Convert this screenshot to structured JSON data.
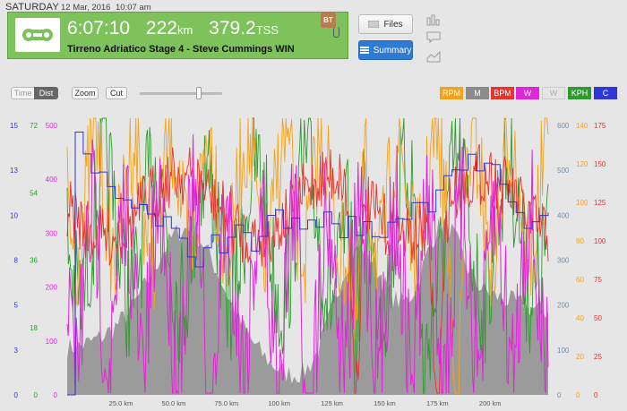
{
  "header": {
    "day": "SATURDAY",
    "date": "12 Mar, 2016",
    "time": "10:07 am"
  },
  "ride": {
    "duration": "6:07:10",
    "distance": "222",
    "distance_unit": "km",
    "tss": "379.2",
    "tss_unit": "TSS",
    "title": "Tirreno Adriatico Stage 4 - Steve Cummings WIN",
    "badge": "BT"
  },
  "buttons": {
    "files": "Files",
    "summary": "Summary"
  },
  "side_icons": [
    "bar-chart-icon",
    "comment-icon",
    "area-chart-icon"
  ],
  "controls": {
    "time": "Time",
    "dist": "Dist",
    "zoom": "Zoom",
    "cut": "Cut",
    "zoom_level": 0.72
  },
  "colors": {
    "banner": "#7dc25b",
    "rpm": "#f5a21a",
    "m": "#8a8a8a",
    "bpm": "#e8322c",
    "w_pink": "#e026d8",
    "w_white": "#e6e6e6",
    "kph": "#2f9a2f",
    "c": "#2f37d8"
  },
  "legend": [
    "RPM",
    "M",
    "BPM",
    "W",
    "W",
    "KPH",
    "C"
  ],
  "chart_data": {
    "type": "line",
    "x_axis": {
      "unit": "km",
      "ticks": [
        "25.0 km",
        "50.0 km",
        "75.0 km",
        "100 km",
        "125 km",
        "150 km",
        "175 km",
        "200 km"
      ]
    },
    "left_axes": [
      {
        "series": "C",
        "ticks": [
          "0",
          "3",
          "5",
          "8",
          "10",
          "13",
          "15"
        ]
      },
      {
        "series": "KPH",
        "ticks": [
          "0",
          "18",
          "36",
          "54",
          "72"
        ]
      },
      {
        "series": "W",
        "ticks": [
          "0",
          "100",
          "200",
          "300",
          "400",
          "500"
        ]
      }
    ],
    "right_axes": [
      {
        "series": "M",
        "ticks": [
          "0",
          "100",
          "200",
          "300",
          "400",
          "500",
          "600"
        ]
      },
      {
        "series": "RPM",
        "ticks": [
          "0",
          "20",
          "40",
          "60",
          "80",
          "100",
          "120",
          "140"
        ]
      },
      {
        "series": "BPM",
        "ticks": [
          "0",
          "25",
          "50",
          "75",
          "100",
          "125",
          "150",
          "175"
        ]
      }
    ]
  }
}
